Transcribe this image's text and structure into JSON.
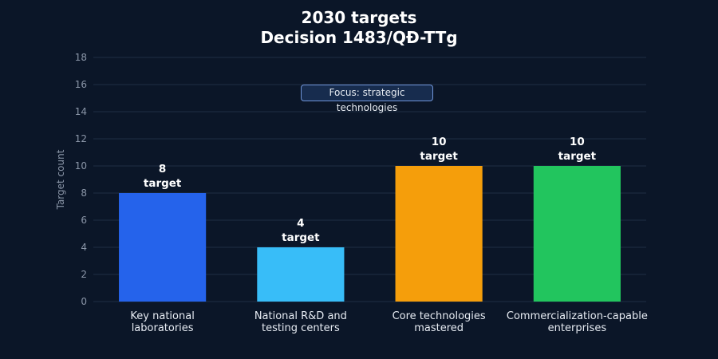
{
  "chart_data": {
    "type": "bar",
    "title": [
      "2030 targets",
      "Decision 1483/QĐ-TTg"
    ],
    "ylabel": "Target count",
    "xlabel": "",
    "ylim": [
      0,
      18
    ],
    "yticks": [
      0,
      2,
      4,
      6,
      8,
      10,
      12,
      14,
      16,
      18
    ],
    "grid": true,
    "categories": [
      [
        "Key national",
        "laboratories"
      ],
      [
        "National R&D and",
        "testing centers"
      ],
      [
        "Core technologies",
        "mastered"
      ],
      [
        "Commercialization-capable",
        "enterprises"
      ]
    ],
    "values": [
      8,
      4,
      10,
      10
    ],
    "data_labels": [
      [
        "8",
        "target"
      ],
      [
        "4",
        "target"
      ],
      [
        "10",
        "target"
      ],
      [
        "10",
        "target"
      ]
    ],
    "colors": [
      "#2563eb",
      "#38bdf8",
      "#f59e0b",
      "#22c55e"
    ],
    "annotation": "Focus: strategic technologies"
  },
  "theme": {
    "background": "#0b1628",
    "grid_color": "#1f2e45"
  }
}
